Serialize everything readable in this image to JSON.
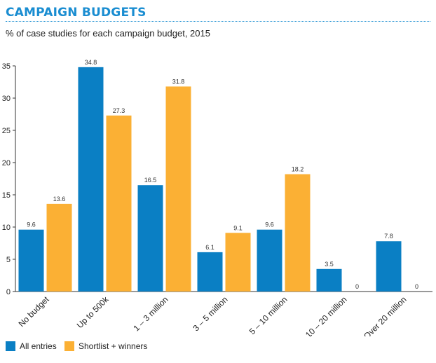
{
  "header": {
    "title": "CAMPAIGN BUDGETS",
    "subtitle": "% of case studies for each campaign budget, 2015"
  },
  "colors": {
    "accent": "#1a8dd1",
    "series_blue": "#0a7fc4",
    "series_orange": "#fbb034",
    "axis": "#333333"
  },
  "chart_data": {
    "type": "bar",
    "title": "CAMPAIGN BUDGETS",
    "subtitle": "% of case studies for each campaign budget, 2015",
    "categories": [
      "No budget",
      "Up to 500k",
      "1 – 3 million",
      "3 – 5 million",
      "5 – 10 million",
      "10 – 20 million",
      "Over 20 million"
    ],
    "series": [
      {
        "name": "All entries",
        "color": "#0a7fc4",
        "values": [
          9.6,
          34.8,
          16.5,
          6.1,
          9.6,
          3.5,
          7.8
        ]
      },
      {
        "name": "Shortlist + winners",
        "color": "#fbb034",
        "values": [
          13.6,
          27.3,
          31.8,
          9.1,
          18.2,
          0,
          0
        ]
      }
    ],
    "data_labels": [
      [
        "9.6",
        "34.8",
        "16.5",
        "6.1",
        "9.6",
        "3.5",
        "7.8"
      ],
      [
        "13.6",
        "27.3",
        "31.8",
        "9.1",
        "18.2",
        "0",
        "0"
      ]
    ],
    "yticks": [
      "0",
      "5",
      "10",
      "15",
      "20",
      "25",
      "30",
      "35"
    ],
    "ylim": [
      0,
      35
    ],
    "xlabel": "",
    "ylabel": "",
    "grid": false,
    "legend": "bottom-left"
  },
  "legend": {
    "items": [
      {
        "label": "All entries",
        "color": "#0a7fc4"
      },
      {
        "label": "Shortlist + winners",
        "color": "#fbb034"
      }
    ]
  }
}
